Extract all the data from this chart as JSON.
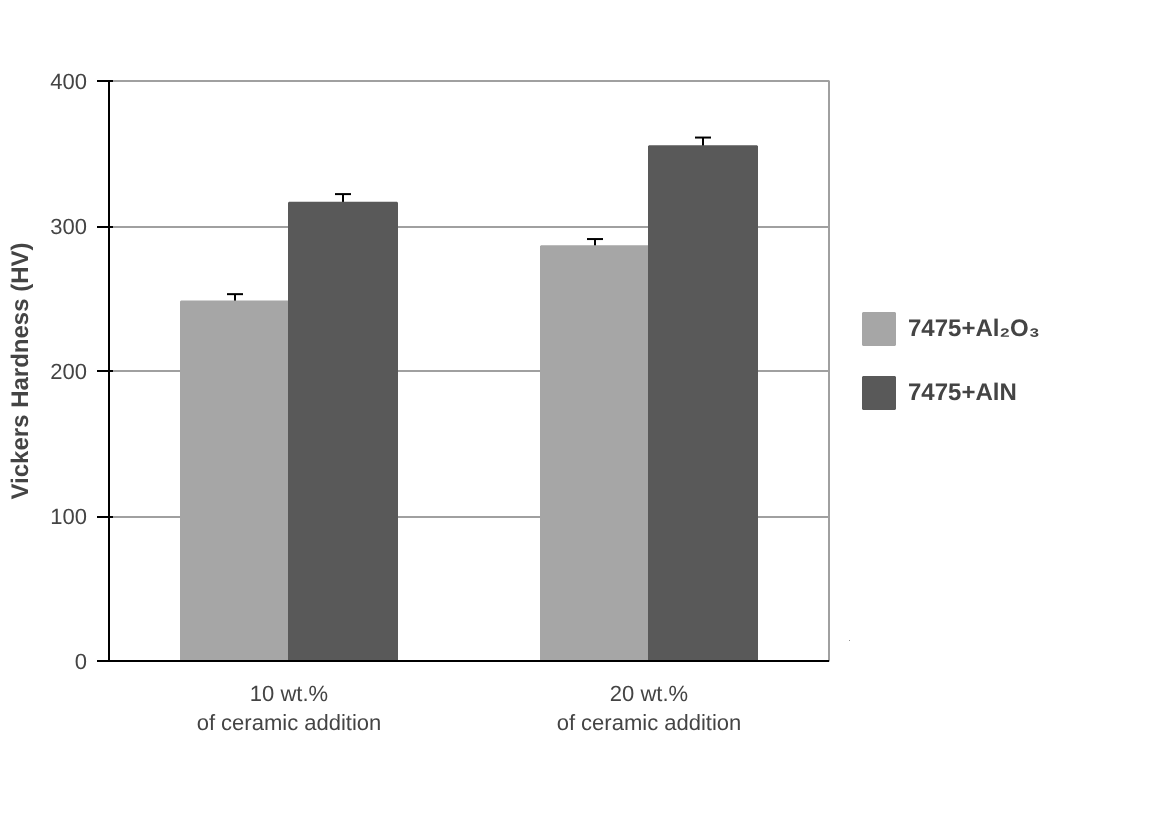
{
  "chart_data": {
    "type": "bar",
    "ylabel": "Vickers Hardness (HV)",
    "categories": [
      "10 wt.%\nof ceramic addition",
      "20 wt.%\nof ceramic addition"
    ],
    "series": [
      {
        "name": "7475+Al₂O₃",
        "color": "#a6a6a6",
        "values": [
          248,
          286
        ],
        "errors": [
          5,
          5
        ]
      },
      {
        "name": "7475+AlN",
        "color": "#595959",
        "values": [
          316,
          355
        ],
        "errors": [
          6,
          6
        ]
      }
    ],
    "ylim": [
      0,
      400
    ],
    "yticks": [
      0,
      100,
      200,
      300,
      400
    ],
    "grid": "y",
    "legend": "right"
  }
}
